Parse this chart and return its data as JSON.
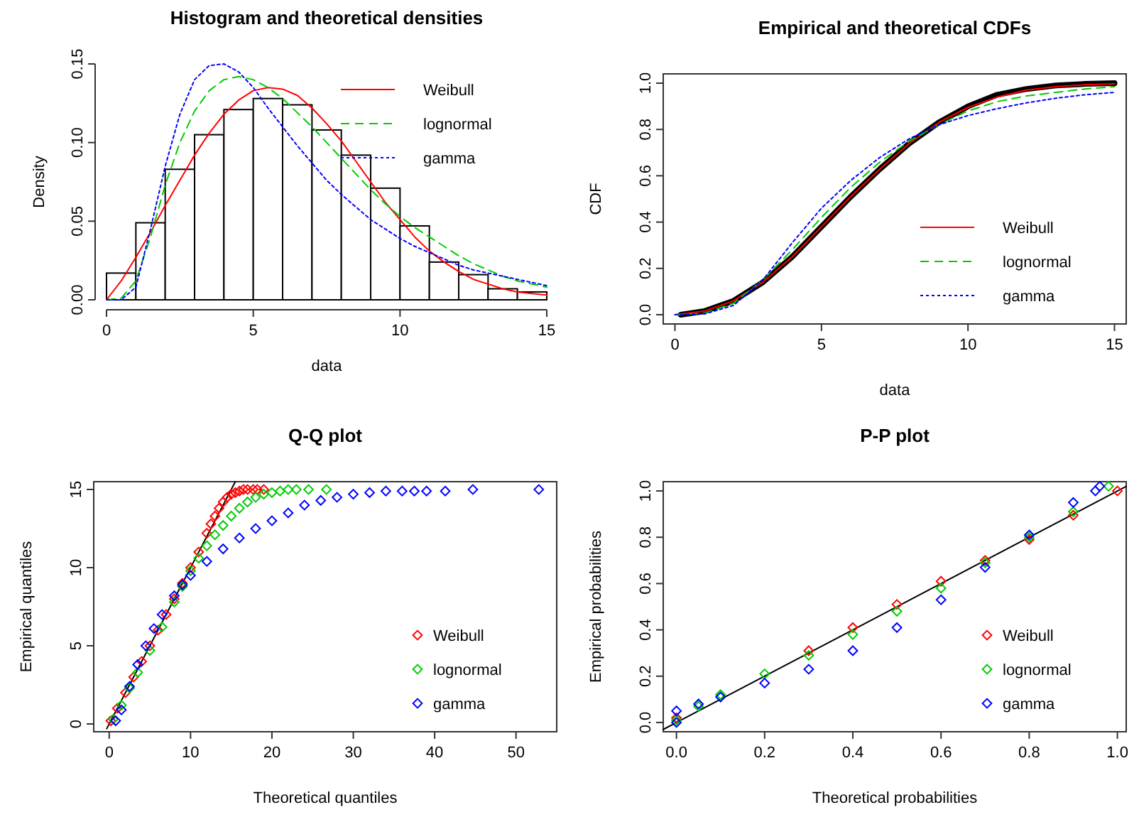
{
  "chart_data": [
    {
      "type": "histogram",
      "title": "Histogram and theoretical densities",
      "xlabel": "data",
      "ylabel": "Density",
      "bins": [
        0,
        1,
        2,
        3,
        4,
        5,
        6,
        7,
        8,
        9,
        10,
        11,
        12,
        13,
        14,
        15
      ],
      "xlim": [
        0,
        15
      ],
      "ylim": [
        0,
        0.15
      ],
      "xticks": [
        0,
        5,
        10,
        15
      ],
      "yticks": [
        {
          "value": 0,
          "label": "0.00"
        },
        {
          "value": 0.05,
          "label": "0.05"
        },
        {
          "value": 0.1,
          "label": "0.10"
        },
        {
          "value": 0.15,
          "label": "0.15"
        }
      ],
      "legend": "top right",
      "series": [
        {
          "type": "histogram",
          "color": "#000000",
          "values": [
            0.017,
            0.049,
            0.083,
            0.105,
            0.121,
            0.128,
            0.124,
            0.108,
            0.092,
            0.071,
            0.047,
            0.024,
            0.016,
            0.007,
            0.005
          ]
        },
        {
          "type": "line",
          "name": "Weibull",
          "color": "#ff0000",
          "line_style": "solid",
          "x": [
            0,
            0.5,
            1,
            1.5,
            2,
            2.5,
            3,
            3.5,
            4,
            4.5,
            5,
            5.5,
            6,
            6.5,
            7,
            7.5,
            8,
            8.5,
            9,
            9.5,
            10,
            10.5,
            11,
            11.5,
            12,
            12.5,
            13,
            13.5,
            14,
            14.5,
            15
          ],
          "values": [
            0,
            0.012,
            0.027,
            0.043,
            0.06,
            0.076,
            0.092,
            0.106,
            0.118,
            0.127,
            0.133,
            0.135,
            0.134,
            0.13,
            0.122,
            0.112,
            0.101,
            0.088,
            0.075,
            0.062,
            0.051,
            0.04,
            0.031,
            0.024,
            0.018,
            0.013,
            0.01,
            0.007,
            0.005,
            0.004,
            0.003
          ]
        },
        {
          "type": "line",
          "name": "lognormal",
          "color": "#00cc00",
          "line_style": "dashed",
          "x": [
            0,
            0.5,
            1,
            1.5,
            2,
            2.5,
            3,
            3.5,
            4,
            4.5,
            5,
            5.5,
            6,
            6.5,
            7,
            7.5,
            8,
            8.5,
            9,
            9.5,
            10,
            10.5,
            11,
            11.5,
            12,
            12.5,
            13,
            13.5,
            14,
            14.5,
            15
          ],
          "values": [
            0,
            0.001,
            0.012,
            0.04,
            0.073,
            0.1,
            0.12,
            0.133,
            0.14,
            0.142,
            0.14,
            0.135,
            0.128,
            0.119,
            0.11,
            0.1,
            0.09,
            0.08,
            0.07,
            0.061,
            0.053,
            0.046,
            0.04,
            0.034,
            0.028,
            0.023,
            0.019,
            0.015,
            0.012,
            0.01,
            0.008
          ]
        },
        {
          "type": "line",
          "name": "gamma",
          "color": "#0000ff",
          "line_style": "dotted",
          "x": [
            0,
            0.5,
            1,
            1.5,
            2,
            2.5,
            3,
            3.5,
            4,
            4.5,
            5,
            5.5,
            6,
            6.5,
            7,
            7.5,
            8,
            8.5,
            9,
            9.5,
            10,
            10.5,
            11,
            11.5,
            12,
            12.5,
            13,
            13.5,
            14,
            14.5,
            15
          ],
          "values": [
            0,
            0,
            0.008,
            0.045,
            0.085,
            0.118,
            0.14,
            0.149,
            0.15,
            0.145,
            0.135,
            0.122,
            0.11,
            0.098,
            0.087,
            0.076,
            0.067,
            0.059,
            0.051,
            0.045,
            0.039,
            0.034,
            0.03,
            0.026,
            0.022,
            0.019,
            0.017,
            0.015,
            0.013,
            0.011,
            0.009
          ]
        }
      ]
    },
    {
      "type": "line",
      "title": "Empirical and theoretical CDFs",
      "xlabel": "data",
      "ylabel": "CDF",
      "xlim": [
        -0.4,
        15.4
      ],
      "ylim": [
        -0.04,
        1.04
      ],
      "xticks": [
        0,
        5,
        10,
        15
      ],
      "yticks": [
        {
          "value": 0,
          "label": "0.0"
        },
        {
          "value": 0.2,
          "label": "0.2"
        },
        {
          "value": 0.4,
          "label": "0.4"
        },
        {
          "value": 0.6,
          "label": "0.6"
        },
        {
          "value": 0.8,
          "label": "0.8"
        },
        {
          "value": 1,
          "label": "1.0"
        }
      ],
      "legend": "bottom right",
      "series": [
        {
          "type": "line",
          "color": "#000000",
          "line_style": "solid",
          "x": [
            0.2,
            1,
            2,
            3,
            4,
            5,
            6,
            7,
            8,
            9,
            10,
            11,
            12,
            13,
            14,
            15
          ],
          "values": [
            0,
            0.015,
            0.06,
            0.14,
            0.25,
            0.38,
            0.51,
            0.63,
            0.74,
            0.83,
            0.9,
            0.95,
            0.975,
            0.99,
            0.997,
            1
          ]
        },
        {
          "type": "line",
          "name": "Weibull",
          "color": "#ff0000",
          "line_style": "solid",
          "x": [
            0,
            1,
            2,
            3,
            4,
            5,
            6,
            7,
            8,
            9,
            10,
            11,
            12,
            13,
            14,
            15
          ],
          "values": [
            0,
            0.015,
            0.06,
            0.14,
            0.25,
            0.38,
            0.51,
            0.63,
            0.74,
            0.83,
            0.895,
            0.94,
            0.97,
            0.985,
            0.993,
            0.997
          ]
        },
        {
          "type": "line",
          "name": "lognormal",
          "color": "#00cc00",
          "line_style": "dashed",
          "x": [
            0,
            1,
            2,
            3,
            4,
            5,
            6,
            7,
            8,
            9,
            10,
            11,
            12,
            13,
            14,
            15
          ],
          "values": [
            0,
            0.006,
            0.05,
            0.15,
            0.28,
            0.42,
            0.55,
            0.66,
            0.75,
            0.82,
            0.88,
            0.92,
            0.945,
            0.96,
            0.975,
            0.985
          ]
        },
        {
          "type": "line",
          "name": "gamma",
          "color": "#0000ff",
          "line_style": "dotted",
          "x": [
            0,
            1,
            2,
            3,
            4,
            5,
            6,
            7,
            8,
            9,
            10,
            11,
            12,
            13,
            14,
            15
          ],
          "values": [
            0,
            0.003,
            0.04,
            0.15,
            0.31,
            0.46,
            0.58,
            0.68,
            0.76,
            0.82,
            0.86,
            0.89,
            0.915,
            0.935,
            0.95,
            0.96
          ]
        }
      ]
    },
    {
      "type": "scatter",
      "title": "Q-Q plot",
      "xlabel": "Theoretical quantiles",
      "ylabel": "Empirical quantiles",
      "xlim": [
        -1.9,
        55
      ],
      "ylim": [
        -0.5,
        15.5
      ],
      "xticks": [
        0,
        10,
        20,
        30,
        40,
        50
      ],
      "yticks": [
        0,
        5,
        10,
        15
      ],
      "legend": "bottom right",
      "marker": "diamond",
      "series": [
        {
          "type": "line",
          "marker": "none",
          "color": "#000000",
          "line_style": "solid",
          "x": [
            -0.3,
            15.5
          ],
          "values": [
            -0.3,
            15.5
          ]
        },
        {
          "name": "Weibull",
          "color": "#ff0000",
          "x": [
            0.2,
            1,
            2,
            3,
            4,
            5,
            6,
            7,
            8,
            9,
            10,
            11,
            12,
            12.5,
            13,
            13.5,
            14,
            14.5,
            15,
            15.5,
            16,
            16.5,
            17,
            17.7,
            18.2,
            19
          ],
          "values": [
            0.2,
            1,
            2,
            3,
            4,
            5,
            6,
            7,
            8,
            9,
            10,
            11,
            12.2,
            12.8,
            13.3,
            13.8,
            14.2,
            14.5,
            14.7,
            14.8,
            14.9,
            15,
            15,
            15,
            15,
            15
          ]
        },
        {
          "name": "lognormal",
          "color": "#00cc00",
          "x": [
            0.5,
            1.5,
            2.5,
            3.5,
            5,
            6.5,
            8,
            9,
            10,
            11,
            12,
            13,
            14,
            15,
            16,
            17,
            18,
            19,
            20,
            21,
            22,
            23,
            24.5,
            26.7
          ],
          "values": [
            0.3,
            1.2,
            2.3,
            3.3,
            4.7,
            6.2,
            7.8,
            8.8,
            9.8,
            10.6,
            11.4,
            12.1,
            12.7,
            13.3,
            13.8,
            14.2,
            14.5,
            14.7,
            14.8,
            14.9,
            15,
            15,
            15,
            15
          ]
        },
        {
          "name": "gamma",
          "color": "#0000ff",
          "x": [
            0.8,
            1.5,
            2.5,
            3.5,
            4.5,
            5.5,
            6.5,
            8,
            9,
            10,
            12,
            14,
            16,
            18,
            20,
            22,
            24,
            26,
            28,
            30,
            32,
            34,
            36,
            37.5,
            39,
            41.3,
            44.7,
            52.8
          ],
          "values": [
            0.2,
            0.9,
            2.4,
            3.8,
            5,
            6.1,
            7,
            8.2,
            8.9,
            9.5,
            10.4,
            11.2,
            11.9,
            12.5,
            13,
            13.5,
            14,
            14.3,
            14.5,
            14.7,
            14.8,
            14.9,
            14.9,
            14.9,
            14.9,
            14.9,
            15,
            15
          ]
        }
      ]
    },
    {
      "type": "scatter",
      "title": "P-P plot",
      "xlabel": "Theoretical probabilities",
      "ylabel": "Empirical probabilities",
      "xlim": [
        -0.03,
        1.02
      ],
      "ylim": [
        -0.04,
        1.04
      ],
      "xticks": [
        {
          "value": 0,
          "label": "0.0"
        },
        {
          "value": 0.2,
          "label": "0.2"
        },
        {
          "value": 0.4,
          "label": "0.4"
        },
        {
          "value": 0.6,
          "label": "0.6"
        },
        {
          "value": 0.8,
          "label": "0.8"
        },
        {
          "value": 1,
          "label": "1.0"
        }
      ],
      "yticks": [
        {
          "value": 0,
          "label": "0.0"
        },
        {
          "value": 0.2,
          "label": "0.2"
        },
        {
          "value": 0.4,
          "label": "0.4"
        },
        {
          "value": 0.6,
          "label": "0.6"
        },
        {
          "value": 0.8,
          "label": "0.8"
        },
        {
          "value": 1,
          "label": "1.0"
        }
      ],
      "legend": "bottom right",
      "marker": "diamond",
      "series": [
        {
          "type": "line",
          "marker": "none",
          "color": "#000000",
          "line_style": "solid",
          "x": [
            -0.03,
            1.02
          ],
          "values": [
            -0.03,
            1.02
          ]
        },
        {
          "name": "Weibull",
          "color": "#ff0000",
          "x": [
            0,
            0.3,
            0.4,
            0.5,
            0.6,
            0.7,
            0.8,
            0.9,
            1
          ],
          "values": [
            0.02,
            0.31,
            0.41,
            0.51,
            0.61,
            0.7,
            0.79,
            0.895,
            1
          ]
        },
        {
          "name": "lognormal",
          "color": "#00cc00",
          "x": [
            0,
            0.05,
            0.1,
            0.2,
            0.3,
            0.4,
            0.5,
            0.6,
            0.7,
            0.8,
            0.9,
            0.98
          ],
          "values": [
            0.01,
            0.07,
            0.12,
            0.21,
            0.29,
            0.38,
            0.48,
            0.58,
            0.69,
            0.8,
            0.91,
            1.02
          ]
        },
        {
          "name": "gamma",
          "color": "#0000ff",
          "x": [
            0,
            0,
            0.05,
            0.1,
            0.2,
            0.3,
            0.4,
            0.5,
            0.6,
            0.7,
            0.8,
            0.9,
            0.95,
            0.96
          ],
          "values": [
            0,
            0.05,
            0.08,
            0.11,
            0.17,
            0.23,
            0.31,
            0.41,
            0.53,
            0.67,
            0.81,
            0.95,
            1,
            1.02
          ]
        }
      ]
    }
  ]
}
